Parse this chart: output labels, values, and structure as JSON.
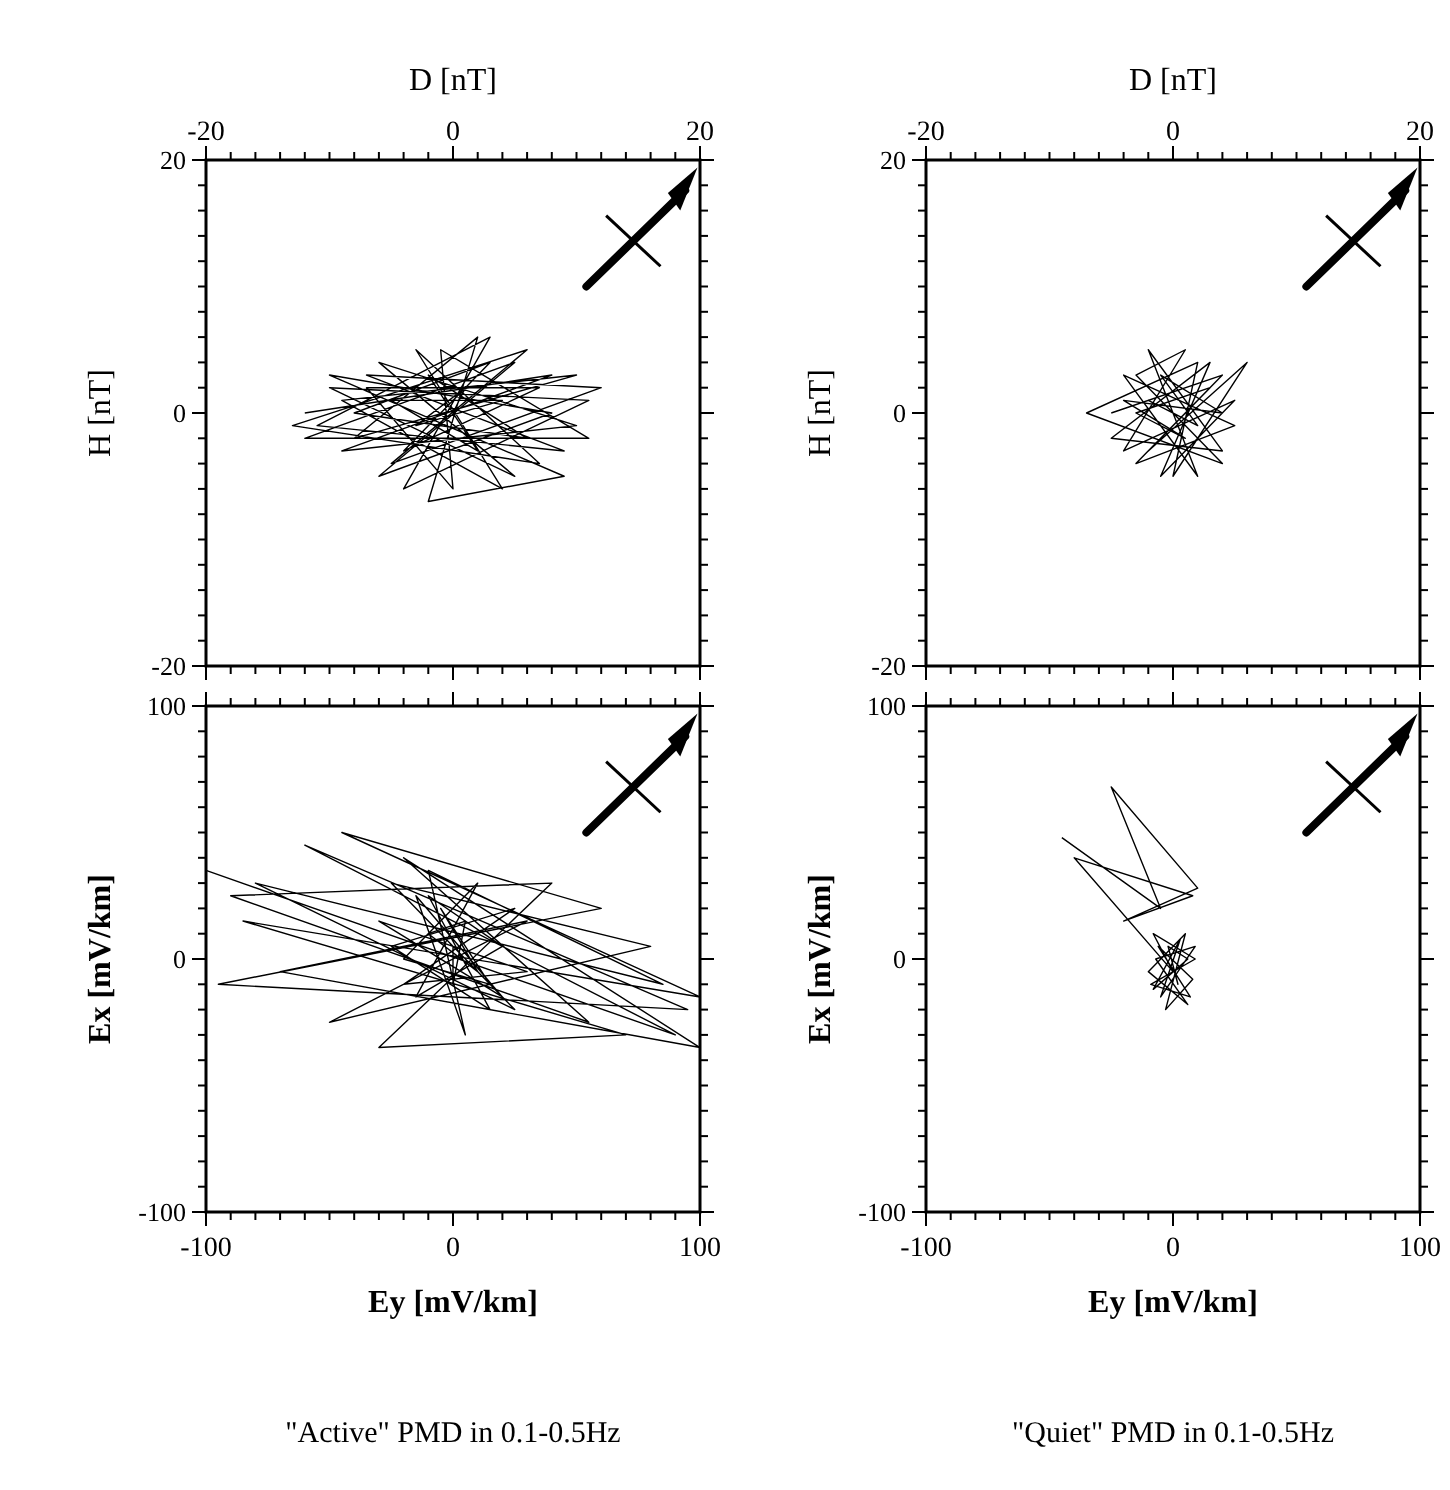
{
  "chart_data": [
    {
      "type": "line",
      "xlabel": "D [nT]",
      "ylabel": "H [nT]",
      "xlim": [
        -20,
        20
      ],
      "ylim": [
        -20,
        20
      ],
      "xticks": [
        -20,
        {
          "value": -18,
          "label": null
        },
        {
          "value": -16,
          "label": null
        },
        {
          "value": -14,
          "label": null
        },
        {
          "value": -12,
          "label": null
        },
        {
          "value": -10,
          "label": null
        },
        {
          "value": -8,
          "label": null
        },
        {
          "value": -6,
          "label": null
        },
        {
          "value": -4,
          "label": null
        },
        {
          "value": -2,
          "label": null
        },
        0,
        {
          "value": 2,
          "label": null
        },
        {
          "value": 4,
          "label": null
        },
        {
          "value": 6,
          "label": null
        },
        {
          "value": 8,
          "label": null
        },
        {
          "value": 10,
          "label": null
        },
        {
          "value": 12,
          "label": null
        },
        {
          "value": 14,
          "label": null
        },
        {
          "value": 16,
          "label": null
        },
        {
          "value": 18,
          "label": null
        },
        20
      ],
      "yticks": [
        -20,
        {
          "value": -18,
          "label": null
        },
        {
          "value": -16,
          "label": null
        },
        {
          "value": -14,
          "label": null
        },
        {
          "value": -12,
          "label": null
        },
        {
          "value": -10,
          "label": null
        },
        {
          "value": -8,
          "label": null
        },
        {
          "value": -6,
          "label": null
        },
        {
          "value": -4,
          "label": null
        },
        {
          "value": -2,
          "label": null
        },
        0,
        {
          "value": 2,
          "label": null
        },
        {
          "value": 4,
          "label": null
        },
        {
          "value": 6,
          "label": null
        },
        {
          "value": 8,
          "label": null
        },
        {
          "value": 10,
          "label": null
        },
        {
          "value": 12,
          "label": null
        },
        {
          "value": 14,
          "label": null
        },
        {
          "value": 16,
          "label": null
        },
        {
          "value": 18,
          "label": null
        },
        20
      ],
      "series": [
        {
          "color": "#000000",
          "x": [
            -12,
            8,
            -9,
            10,
            -6,
            5,
            -10,
            11,
            -4,
            3,
            -11,
            9,
            -7,
            12,
            -5,
            6,
            -13,
            7,
            -3,
            4,
            -9,
            10,
            -8,
            2,
            -2,
            9,
            -10,
            8,
            -6,
            5,
            -12,
            11,
            -1,
            0,
            -7,
            7,
            -4,
            3,
            -8,
            6,
            -2,
            2,
            -5,
            4,
            -3,
            1,
            0
          ],
          "values": [
            0,
            3,
            -3,
            -1,
            4,
            -5,
            2,
            1,
            -6,
            6,
            -1,
            -3,
            3,
            2,
            -4,
            5,
            -1,
            -4,
            5,
            -6,
            1,
            3,
            -2,
            6,
            -7,
            -5,
            3,
            0,
            -5,
            4,
            -2,
            -2,
            5,
            -6,
            2,
            2,
            -3,
            4,
            0,
            -2,
            3,
            -3,
            1,
            1,
            -1,
            2,
            0
          ]
        }
      ]
    },
    {
      "type": "line",
      "xlabel": "D [nT]",
      "ylabel": "H [nT]",
      "xlim": [
        -20,
        20
      ],
      "ylim": [
        -20,
        20
      ],
      "xticks": [
        -20,
        {
          "value": -18,
          "label": null
        },
        {
          "value": -16,
          "label": null
        },
        {
          "value": -14,
          "label": null
        },
        {
          "value": -12,
          "label": null
        },
        {
          "value": -10,
          "label": null
        },
        {
          "value": -8,
          "label": null
        },
        {
          "value": -6,
          "label": null
        },
        {
          "value": -4,
          "label": null
        },
        {
          "value": -2,
          "label": null
        },
        0,
        {
          "value": 2,
          "label": null
        },
        {
          "value": 4,
          "label": null
        },
        {
          "value": 6,
          "label": null
        },
        {
          "value": 8,
          "label": null
        },
        {
          "value": 10,
          "label": null
        },
        {
          "value": 12,
          "label": null
        },
        {
          "value": 14,
          "label": null
        },
        {
          "value": 16,
          "label": null
        },
        {
          "value": 18,
          "label": null
        },
        20
      ],
      "yticks": [
        -20,
        {
          "value": -18,
          "label": null
        },
        {
          "value": -16,
          "label": null
        },
        {
          "value": -14,
          "label": null
        },
        {
          "value": -12,
          "label": null
        },
        {
          "value": -10,
          "label": null
        },
        {
          "value": -8,
          "label": null
        },
        {
          "value": -6,
          "label": null
        },
        {
          "value": -4,
          "label": null
        },
        {
          "value": -2,
          "label": null
        },
        0,
        {
          "value": 2,
          "label": null
        },
        {
          "value": 4,
          "label": null
        },
        {
          "value": 6,
          "label": null
        },
        {
          "value": 8,
          "label": null
        },
        {
          "value": 10,
          "label": null
        },
        {
          "value": 12,
          "label": null
        },
        {
          "value": 14,
          "label": null
        },
        {
          "value": 16,
          "label": null
        },
        {
          "value": 18,
          "label": null
        },
        20
      ],
      "series": [
        {
          "color": "#000000",
          "x": [
            -5,
            4,
            -3,
            5,
            -4,
            2,
            -2,
            4,
            -5,
            3,
            -1,
            5,
            -4,
            1,
            -3,
            4,
            -7,
            2,
            0,
            6,
            -2,
            3,
            -3,
            1,
            -4,
            4,
            -1,
            2,
            -2,
            0
          ],
          "values": [
            0,
            3,
            -4,
            -1,
            3,
            -5,
            5,
            -3,
            -2,
            4,
            -5,
            1,
            -3,
            5,
            3,
            -4,
            0,
            4,
            -5,
            4,
            -3,
            2,
            0,
            -2,
            1,
            0,
            3,
            -1,
            1,
            0
          ]
        }
      ]
    },
    {
      "type": "line",
      "xlabel": "Ey [mV/km]",
      "ylabel": "Ex [mV/km]",
      "xlim": [
        -100,
        100
      ],
      "ylim": [
        -100,
        100
      ],
      "xticks": [
        -100,
        {
          "value": -90,
          "label": null
        },
        {
          "value": -80,
          "label": null
        },
        {
          "value": -70,
          "label": null
        },
        {
          "value": -60,
          "label": null
        },
        {
          "value": -50,
          "label": null
        },
        {
          "value": -40,
          "label": null
        },
        {
          "value": -30,
          "label": null
        },
        {
          "value": -20,
          "label": null
        },
        {
          "value": -10,
          "label": null
        },
        0,
        {
          "value": 10,
          "label": null
        },
        {
          "value": 20,
          "label": null
        },
        {
          "value": 30,
          "label": null
        },
        {
          "value": 40,
          "label": null
        },
        {
          "value": 50,
          "label": null
        },
        {
          "value": 60,
          "label": null
        },
        {
          "value": 70,
          "label": null
        },
        {
          "value": 80,
          "label": null
        },
        {
          "value": 90,
          "label": null
        },
        100
      ],
      "yticks": [
        -100,
        {
          "value": -90,
          "label": null
        },
        {
          "value": -80,
          "label": null
        },
        {
          "value": -70,
          "label": null
        },
        {
          "value": -60,
          "label": null
        },
        {
          "value": -50,
          "label": null
        },
        {
          "value": -40,
          "label": null
        },
        {
          "value": -30,
          "label": null
        },
        {
          "value": -20,
          "label": null
        },
        {
          "value": -10,
          "label": null
        },
        0,
        {
          "value": 10,
          "label": null
        },
        {
          "value": 20,
          "label": null
        },
        {
          "value": 30,
          "label": null
        },
        {
          "value": 40,
          "label": null
        },
        {
          "value": 50,
          "label": null
        },
        {
          "value": 60,
          "label": null
        },
        {
          "value": 70,
          "label": null
        },
        {
          "value": 80,
          "label": null
        },
        {
          "value": 90,
          "label": null
        },
        100
      ],
      "annotations": [
        "\"Active\" PMD in 0.1-0.5Hz"
      ],
      "series": [
        {
          "color": "#000000",
          "x": [
            -100,
            90,
            -60,
            95,
            -95,
            60,
            -45,
            100,
            -85,
            70,
            -30,
            40,
            -90,
            55,
            -20,
            100,
            -70,
            30,
            -50,
            80,
            -25,
            25,
            -80,
            85,
            -10,
            5,
            -15,
            20,
            -30,
            30,
            -20,
            25,
            -25,
            15,
            -10,
            20,
            -15,
            10,
            -20,
            15,
            -5,
            10,
            -10,
            5,
            0,
            0
          ],
          "values": [
            35,
            -30,
            45,
            -20,
            -10,
            20,
            50,
            -15,
            15,
            -30,
            -35,
            30,
            25,
            -25,
            40,
            -35,
            -5,
            15,
            -25,
            5,
            30,
            -20,
            30,
            -10,
            35,
            -30,
            25,
            -15,
            15,
            -5,
            -10,
            20,
            5,
            -20,
            25,
            5,
            -15,
            30,
            0,
            -10,
            20,
            -5,
            10,
            15,
            -10,
            5
          ]
        }
      ]
    },
    {
      "type": "line",
      "xlabel": "Ey [mV/km]",
      "ylabel": "Ex [mV/km]",
      "xlim": [
        -100,
        100
      ],
      "ylim": [
        -100,
        100
      ],
      "xticks": [
        -100,
        {
          "value": -90,
          "label": null
        },
        {
          "value": -80,
          "label": null
        },
        {
          "value": -70,
          "label": null
        },
        {
          "value": -60,
          "label": null
        },
        {
          "value": -50,
          "label": null
        },
        {
          "value": -40,
          "label": null
        },
        {
          "value": -30,
          "label": null
        },
        {
          "value": -20,
          "label": null
        },
        {
          "value": -10,
          "label": null
        },
        0,
        {
          "value": 10,
          "label": null
        },
        {
          "value": 20,
          "label": null
        },
        {
          "value": 30,
          "label": null
        },
        {
          "value": 40,
          "label": null
        },
        {
          "value": 50,
          "label": null
        },
        {
          "value": 60,
          "label": null
        },
        {
          "value": 70,
          "label": null
        },
        {
          "value": 80,
          "label": null
        },
        {
          "value": 90,
          "label": null
        },
        100
      ],
      "yticks": [
        -100,
        {
          "value": -90,
          "label": null
        },
        {
          "value": -80,
          "label": null
        },
        {
          "value": -70,
          "label": null
        },
        {
          "value": -60,
          "label": null
        },
        {
          "value": -50,
          "label": null
        },
        {
          "value": -40,
          "label": null
        },
        {
          "value": -30,
          "label": null
        },
        {
          "value": -20,
          "label": null
        },
        {
          "value": -10,
          "label": null
        },
        0,
        {
          "value": 10,
          "label": null
        },
        {
          "value": 20,
          "label": null
        },
        {
          "value": 30,
          "label": null
        },
        {
          "value": 40,
          "label": null
        },
        {
          "value": 50,
          "label": null
        },
        {
          "value": 60,
          "label": null
        },
        {
          "value": 70,
          "label": null
        },
        {
          "value": 80,
          "label": null
        },
        {
          "value": 90,
          "label": null
        },
        100
      ],
      "annotations": [
        "\"Quiet\" PMD in 0.1-0.5Hz"
      ],
      "series": [
        {
          "color": "#000000",
          "x": [
            -45,
            -5,
            -25,
            10,
            -20,
            8,
            -40,
            0,
            -8,
            9,
            -9,
            7,
            -6,
            8,
            -3,
            5,
            -10,
            6,
            -7,
            9,
            -5,
            3,
            -8,
            6,
            -2,
            2,
            0
          ],
          "values": [
            48,
            20,
            68,
            28,
            15,
            25,
            40,
            -5,
            10,
            0,
            -10,
            -15,
            5,
            -8,
            -20,
            10,
            -5,
            -18,
            0,
            5,
            -15,
            8,
            -12,
            0,
            5,
            -10,
            -3
          ]
        }
      ]
    }
  ]
}
